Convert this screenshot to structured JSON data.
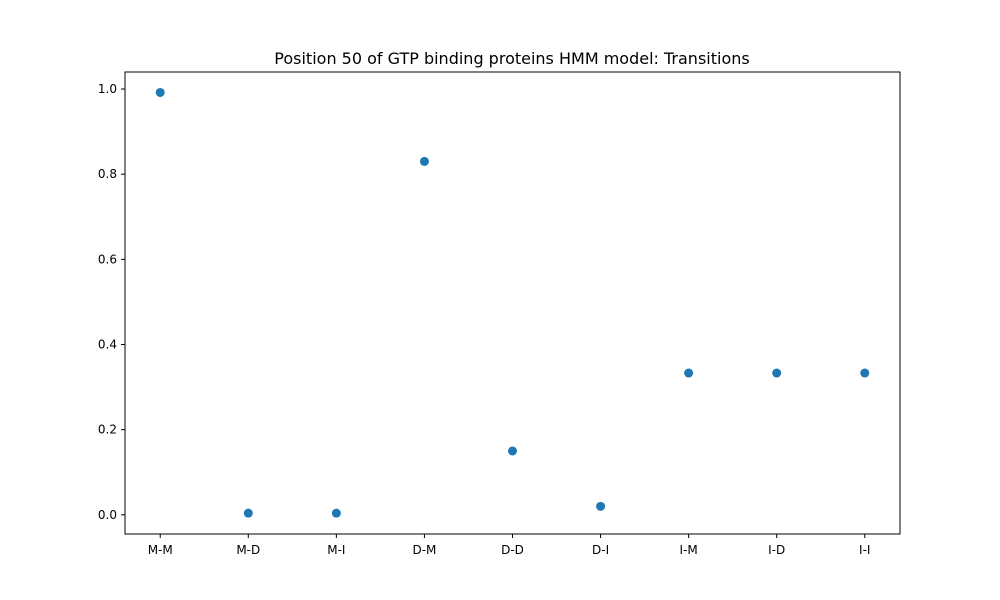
{
  "chart_data": {
    "type": "scatter",
    "title": "Position 50 of GTP binding proteins HMM model: Transitions",
    "xlabel": "",
    "ylabel": "",
    "categories": [
      "M-M",
      "M-D",
      "M-I",
      "D-M",
      "D-D",
      "D-I",
      "I-M",
      "I-D",
      "I-I"
    ],
    "values": [
      0.992,
      0.004,
      0.004,
      0.83,
      0.15,
      0.02,
      0.333,
      0.333,
      0.333
    ],
    "yticks": [
      0.0,
      0.2,
      0.4,
      0.6,
      0.8,
      1.0
    ],
    "ytick_labels": [
      "0.0",
      "0.2",
      "0.4",
      "0.6",
      "0.8",
      "1.0"
    ],
    "ylim": [
      -0.045,
      1.04
    ],
    "grid": false,
    "marker_color": "#1f77b4"
  }
}
